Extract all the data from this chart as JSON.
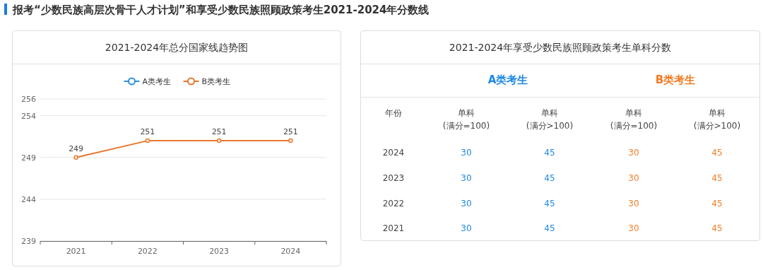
{
  "chart_data": [
    {
      "type": "line",
      "title": "报考“少数民族高层次骨干人才计划”和享受少数民族照顾政策考生2021-2024年分数线",
      "subtitle": "2021-2024年总分国家线趋势图",
      "categories": [
        "2021",
        "2022",
        "2023",
        "2024"
      ],
      "series": [
        {
          "name": "A类考生",
          "color": "#2f8ee0",
          "values": [
            null,
            null,
            null,
            null
          ]
        },
        {
          "name": "B类考生",
          "color": "#e8772e",
          "values": [
            249,
            251,
            251,
            251
          ]
        }
      ],
      "ylim": [
        239,
        256
      ],
      "yticks": [
        239,
        244,
        249,
        254,
        256
      ],
      "grid": "y",
      "legend": "top",
      "marker": "circle",
      "data_labels": true
    },
    {
      "type": "heatmap",
      "title": "2021-2024年享受少数民族照顾政策考生单科分数",
      "annotations": [
        "A类考生",
        "B类考生"
      ],
      "ylabel": "年份",
      "categories": [
        "单科(满分=100)",
        "单科(满分>100)",
        "单科(满分=100)",
        "单科(满分>100)"
      ],
      "y_categories": [
        "2024",
        "2023",
        "2022",
        "2021"
      ],
      "colors": [
        "#1e88e5",
        "#1e88e5",
        "#f07c24",
        "#f07c24"
      ],
      "data_labels": true,
      "cells": [
        [
          30,
          45,
          30,
          45
        ],
        [
          30,
          45,
          30,
          45
        ],
        [
          30,
          45,
          30,
          45
        ],
        [
          30,
          45,
          30,
          45
        ]
      ]
    }
  ]
}
